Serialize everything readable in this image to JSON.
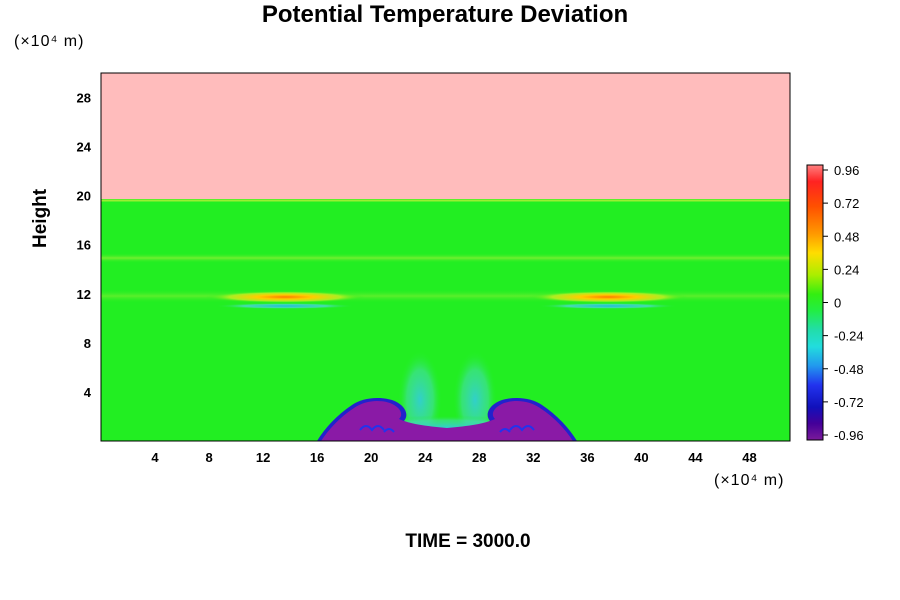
{
  "title": "Potential Temperature Deviation",
  "time_label": "TIME = 3000.0",
  "y_unit": "(×10⁴ m)",
  "x_unit": "(×10⁴ m)",
  "colors": {
    "upper_layer": "#ffbcbc",
    "background": "#22ee22",
    "cold_pool": "#8a1aa6",
    "cold_edge": "#2222cc",
    "warm": "#ff8c00"
  },
  "chart_data": {
    "type": "heatmap",
    "title": "Potential Temperature Deviation",
    "ylabel": "Height",
    "y_unit": "(×10⁴ m)",
    "x_unit": "(×10⁴ m)",
    "xlim": [
      0,
      51
    ],
    "ylim": [
      0,
      30
    ],
    "xticks": [
      "4",
      "8",
      "12",
      "16",
      "20",
      "24",
      "28",
      "32",
      "36",
      "40",
      "44",
      "48"
    ],
    "xtick_values": [
      4,
      8,
      12,
      16,
      20,
      24,
      28,
      32,
      36,
      40,
      44,
      48
    ],
    "yticks": [
      "4",
      "8",
      "12",
      "16",
      "20",
      "24",
      "28"
    ],
    "ytick_values": [
      4,
      8,
      12,
      16,
      20,
      24,
      28
    ],
    "colorbar": {
      "range": [
        -0.96,
        0.96
      ],
      "labels": [
        "0.96",
        "0.72",
        "0.48",
        "0.24",
        "0",
        "-0.24",
        "-0.48",
        "-0.72",
        "-0.96"
      ],
      "label_values": [
        0.96,
        0.72,
        0.48,
        0.24,
        0,
        -0.24,
        -0.48,
        -0.72,
        -0.96
      ]
    },
    "features": {
      "upper_layer_bottom_height": 19.6,
      "upper_layer_value": 0.96,
      "background_value": 0.0,
      "warm_bands_height": 11.5,
      "warm_band_peak_value": 0.6,
      "cold_pool_x_range": [
        16,
        35
      ],
      "cold_pool_top_height": 3.4,
      "cold_pool_value": -0.96
    }
  }
}
